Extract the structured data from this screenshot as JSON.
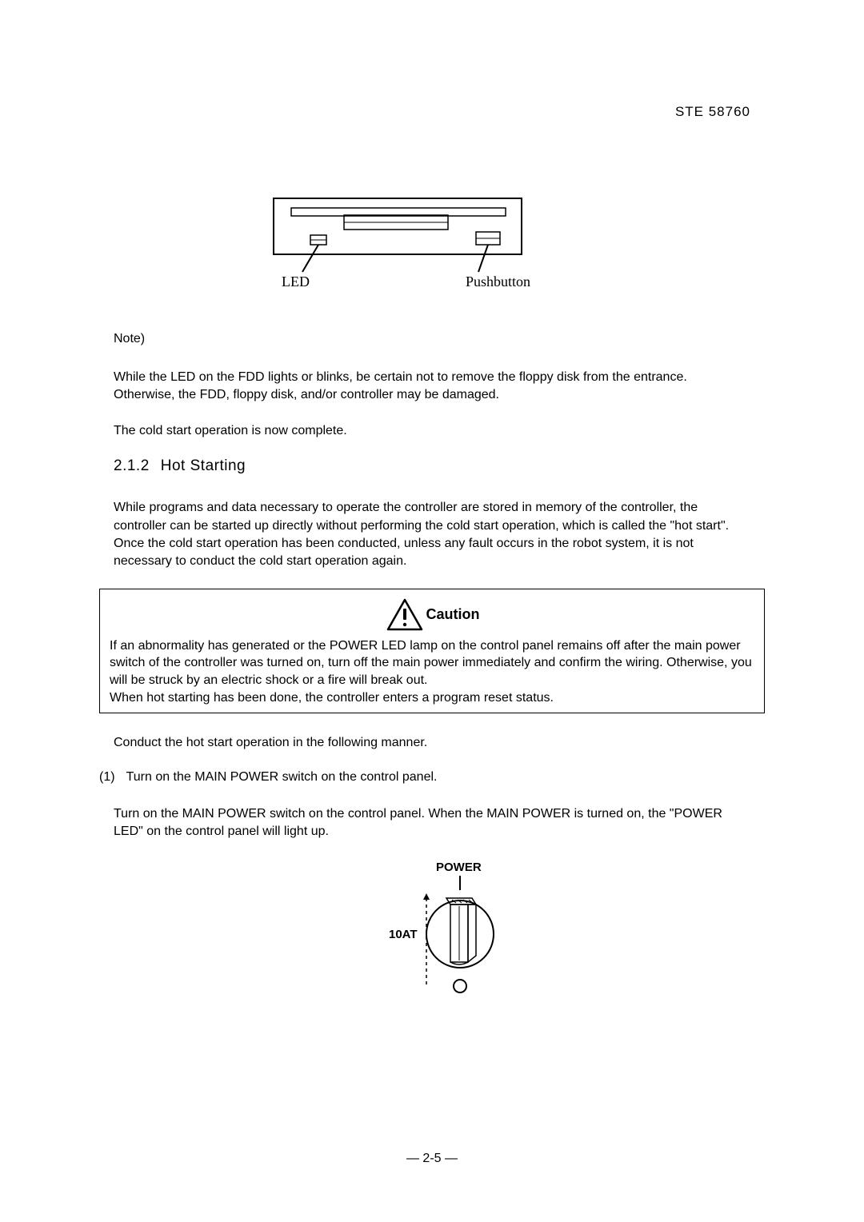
{
  "headerCode": "STE  58760",
  "noteLabel": "Note)",
  "noteText": "While the LED on the FDD lights or blinks, be certain not to remove the floppy disk from the entrance.    Otherwise, the FDD, floppy disk, and/or controller may be damaged.",
  "coldStartComplete": "The cold start operation is now complete.",
  "sectionNumber": "2.1.2",
  "sectionTitle": "Hot Starting",
  "hotStartIntro": "While programs and data necessary to operate the controller are stored in memory of the controller, the controller can be started up directly without performing the cold start operation, which is called the \"hot start\".      Once the cold start operation has been conducted, unless any fault occurs in the robot system, it is not necessary to conduct the cold start operation again.",
  "cautionTitle": "Caution",
  "cautionText": "If an abnormality has generated or the POWER LED lamp on the control panel remains off after the main power switch of the controller was turned on, turn off the main power immediately and confirm the wiring. Otherwise, you will be struck by an electric shock or a fire will break out.\nWhen hot starting has been done, the controller enters a program reset status.",
  "conductText": "Conduct the hot start operation in the following manner.",
  "step1Number": "(1)",
  "step1Title": "Turn on the MAIN POWER switch on the control panel.",
  "step1Text": "Turn on the MAIN POWER switch on the control panel.    When the MAIN POWER is turned on, the \"POWER LED\" on the control panel will light up.",
  "fddLabels": {
    "led": "LED",
    "pushbutton": "Pushbutton"
  },
  "powerLabels": {
    "power": "POWER",
    "amps": "10AT"
  },
  "pageNumber": "— 2-5 —",
  "colors": {
    "text": "#000000",
    "background": "#ffffff"
  }
}
